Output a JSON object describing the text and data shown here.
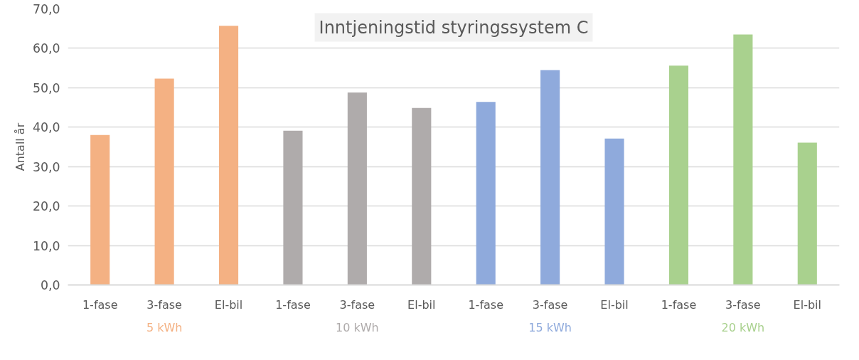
{
  "chart_data": {
    "type": "bar",
    "title": "Inntjeningstid styringssystem C",
    "ylabel": "Antall år",
    "categories": [
      "1-fase",
      "3-fase",
      "El-bil",
      "1-fase",
      "3-fase",
      "El-bil",
      "1-fase",
      "3-fase",
      "El-bil",
      "1-fase",
      "3-fase",
      "El-bil"
    ],
    "series": [
      {
        "name": "5 kWh",
        "color": "#f4b183",
        "values": [
          38.0,
          52.3,
          65.7,
          null,
          null,
          null,
          null,
          null,
          null,
          null,
          null,
          null
        ]
      },
      {
        "name": "10 kWh",
        "color": "#afabab",
        "values": [
          null,
          null,
          null,
          39.1,
          48.8,
          44.9,
          null,
          null,
          null,
          null,
          null,
          null
        ]
      },
      {
        "name": "15 kWh",
        "color": "#8faadc",
        "values": [
          null,
          null,
          null,
          null,
          null,
          null,
          46.4,
          54.5,
          37.1,
          null,
          null,
          null
        ]
      },
      {
        "name": "20 kWh",
        "color": "#a9d18e",
        "values": [
          null,
          null,
          null,
          null,
          null,
          null,
          null,
          null,
          null,
          55.6,
          63.5,
          36.1
        ]
      }
    ],
    "ylim": [
      0,
      70
    ],
    "yticks": [
      {
        "value": 0,
        "label": "0,0"
      },
      {
        "value": 10,
        "label": "10,0"
      },
      {
        "value": 20,
        "label": "20,0"
      },
      {
        "value": 30,
        "label": "30,0"
      },
      {
        "value": 40,
        "label": "40,0"
      },
      {
        "value": 50,
        "label": "50,0"
      },
      {
        "value": 60,
        "label": "60,0"
      },
      {
        "value": 70,
        "label": "70,0"
      }
    ],
    "grid": "y",
    "legend": false
  }
}
